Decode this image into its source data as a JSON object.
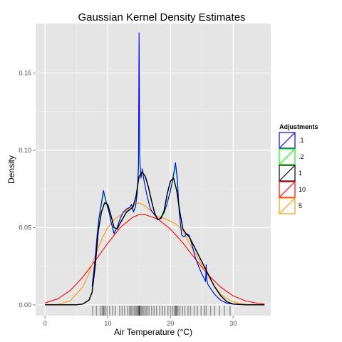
{
  "chart_data": {
    "type": "line",
    "title": "Gaussian Kernel Density Estimates",
    "xlabel": "Air Temperature (°C)",
    "ylabel": "Density",
    "xlim": [
      -1.5,
      36
    ],
    "ylim": [
      -0.007,
      0.182
    ],
    "x_ticks": [
      0,
      10,
      20,
      30
    ],
    "y_ticks": [
      0.0,
      0.05,
      0.1,
      0.15
    ],
    "x_tick_labels": [
      "0",
      "10",
      "20",
      "30"
    ],
    "y_tick_labels": [
      "0.00",
      "0.05",
      "0.10",
      "0.15"
    ],
    "grid": true,
    "legend": {
      "title": "Adjustments",
      "placement": "right",
      "entries": [
        {
          "label": ".1",
          "color": "#0000ff"
        },
        {
          "label": ".2",
          "color": "#00ff00"
        },
        {
          "label": "1",
          "color": "#000000"
        },
        {
          "label": "10",
          "color": "#ff0000"
        },
        {
          "label": "5",
          "color": "#ff9900"
        }
      ]
    },
    "series": [
      {
        "name": ".1",
        "color": "#0000ff",
        "x": [
          7.5,
          8,
          8.3,
          8.6,
          9,
          9.3,
          9.5,
          9.8,
          10.2,
          10.5,
          11,
          11.5,
          12,
          12.5,
          13,
          13.5,
          13.8,
          14.1,
          14.4,
          14.7,
          14.9,
          15.0,
          15.1,
          15.3,
          15.5,
          15.8,
          16.2,
          16.8,
          17.5,
          18.2,
          19,
          19.5,
          20,
          20.4,
          20.8,
          21.1,
          21.4,
          21.8,
          22.2,
          22.6,
          23,
          23.5,
          24,
          24.5,
          25,
          25.4,
          25.6,
          25.7,
          25.8,
          26,
          26.5,
          27,
          27.5,
          28,
          29,
          30,
          31,
          32,
          33,
          34,
          35
        ],
        "y": [
          0.012,
          0.03,
          0.045,
          0.056,
          0.066,
          0.074,
          0.071,
          0.066,
          0.06,
          0.054,
          0.046,
          0.05,
          0.056,
          0.06,
          0.062,
          0.063,
          0.065,
          0.06,
          0.063,
          0.072,
          0.09,
          0.176,
          0.095,
          0.082,
          0.088,
          0.08,
          0.072,
          0.062,
          0.058,
          0.055,
          0.06,
          0.066,
          0.074,
          0.082,
          0.092,
          0.082,
          0.06,
          0.045,
          0.044,
          0.046,
          0.045,
          0.038,
          0.03,
          0.025,
          0.02,
          0.017,
          0.015,
          0.026,
          0.016,
          0.013,
          0.01,
          0.007,
          0.005,
          0.003,
          0.001,
          0.0005,
          0.0002,
          0.0001,
          0,
          0,
          0
        ]
      },
      {
        "name": ".2",
        "color": "#00ff00",
        "x": [
          7.5,
          8,
          8.3,
          8.6,
          9,
          9.3,
          9.5,
          9.8,
          10.2,
          10.5,
          11,
          11.5,
          12,
          12.5,
          13,
          13.5,
          13.8,
          14.1,
          14.4,
          14.7,
          14.9,
          15.0,
          15.1,
          15.3,
          15.5,
          15.8,
          16.2,
          16.8,
          17.5,
          18.2,
          19,
          19.5,
          20,
          20.4,
          20.8,
          21.1,
          21.4,
          21.8,
          22.2,
          22.6,
          23,
          23.5,
          24,
          24.5,
          25,
          25.4,
          25.6,
          25.7,
          25.8,
          26,
          26.5,
          27,
          27.5,
          28,
          29,
          30,
          31,
          32,
          33,
          34,
          35
        ],
        "y": [
          0.01,
          0.028,
          0.044,
          0.055,
          0.065,
          0.072,
          0.07,
          0.065,
          0.06,
          0.054,
          0.047,
          0.05,
          0.056,
          0.06,
          0.062,
          0.063,
          0.065,
          0.061,
          0.063,
          0.071,
          0.085,
          0.12,
          0.092,
          0.082,
          0.087,
          0.08,
          0.072,
          0.062,
          0.058,
          0.055,
          0.059,
          0.066,
          0.073,
          0.081,
          0.09,
          0.08,
          0.06,
          0.045,
          0.044,
          0.046,
          0.044,
          0.038,
          0.03,
          0.025,
          0.02,
          0.017,
          0.015,
          0.02,
          0.016,
          0.013,
          0.01,
          0.007,
          0.005,
          0.003,
          0.001,
          0.0005,
          0.0002,
          0.0001,
          0,
          0,
          0
        ]
      },
      {
        "name": "1",
        "color": "#000000",
        "x": [
          0,
          5,
          6,
          7,
          7.5,
          8,
          8.5,
          9,
          9.5,
          10,
          10.5,
          11,
          11.5,
          12,
          13,
          14,
          14.5,
          15,
          15.5,
          16,
          16.5,
          17,
          17.5,
          18,
          18.5,
          19,
          19.5,
          20,
          20.5,
          21,
          21.5,
          22,
          22.5,
          23,
          24,
          25,
          26,
          27,
          28,
          29,
          30,
          32,
          35
        ],
        "y": [
          0,
          0,
          0.0005,
          0.003,
          0.008,
          0.025,
          0.048,
          0.06,
          0.066,
          0.065,
          0.058,
          0.05,
          0.049,
          0.053,
          0.06,
          0.063,
          0.07,
          0.083,
          0.086,
          0.083,
          0.076,
          0.067,
          0.059,
          0.055,
          0.056,
          0.061,
          0.072,
          0.08,
          0.082,
          0.074,
          0.06,
          0.049,
          0.046,
          0.044,
          0.036,
          0.028,
          0.02,
          0.012,
          0.006,
          0.002,
          0.0005,
          0,
          0
        ]
      },
      {
        "name": "10",
        "color": "#ff0000",
        "x": [
          0,
          2,
          4,
          6,
          8,
          10,
          12,
          14,
          15,
          16,
          18,
          20,
          22,
          24,
          26,
          28,
          30,
          32,
          34,
          35
        ],
        "y": [
          0.0012,
          0.0038,
          0.0092,
          0.0178,
          0.0285,
          0.0398,
          0.05,
          0.0567,
          0.0583,
          0.0583,
          0.0555,
          0.049,
          0.04,
          0.0295,
          0.0195,
          0.0115,
          0.0058,
          0.0025,
          0.0009,
          0.0005
        ]
      },
      {
        "name": "5",
        "color": "#ff9900",
        "x": [
          0,
          2,
          4,
          6,
          7,
          8,
          9,
          10,
          11,
          12,
          13,
          14,
          15,
          16,
          17,
          18,
          19,
          20,
          21,
          22,
          23,
          24,
          25,
          26,
          27,
          28,
          29,
          30,
          31,
          32,
          33,
          34,
          35
        ],
        "y": [
          0,
          0.0003,
          0.0025,
          0.0115,
          0.02,
          0.032,
          0.042,
          0.05,
          0.055,
          0.058,
          0.061,
          0.064,
          0.066,
          0.064,
          0.06,
          0.057,
          0.056,
          0.054,
          0.052,
          0.048,
          0.04,
          0.033,
          0.026,
          0.019,
          0.012,
          0.007,
          0.004,
          0.002,
          0.0008,
          0.0003,
          0.0001,
          0,
          0
        ]
      }
    ],
    "rug": {
      "color": "#000000",
      "x": [
        7.6,
        8.2,
        8.8,
        9.1,
        9.3,
        9.4,
        9.6,
        9.9,
        10.3,
        10.8,
        11.2,
        11.9,
        12.3,
        12.7,
        13.2,
        13.5,
        13.7,
        13.9,
        14.2,
        14.4,
        14.6,
        14.8,
        14.9,
        15.0,
        15.05,
        15.1,
        15.2,
        15.4,
        15.6,
        15.8,
        16.1,
        16.3,
        16.6,
        17.0,
        17.4,
        17.8,
        18.3,
        18.7,
        19.1,
        19.6,
        20.0,
        20.3,
        20.6,
        20.8,
        20.9,
        21.0,
        21.2,
        21.5,
        21.9,
        22.3,
        22.8,
        23.2,
        23.8,
        24.3,
        24.9,
        25.4,
        25.7,
        26.4,
        27.0,
        27.8,
        28.6,
        29.5
      ]
    }
  }
}
